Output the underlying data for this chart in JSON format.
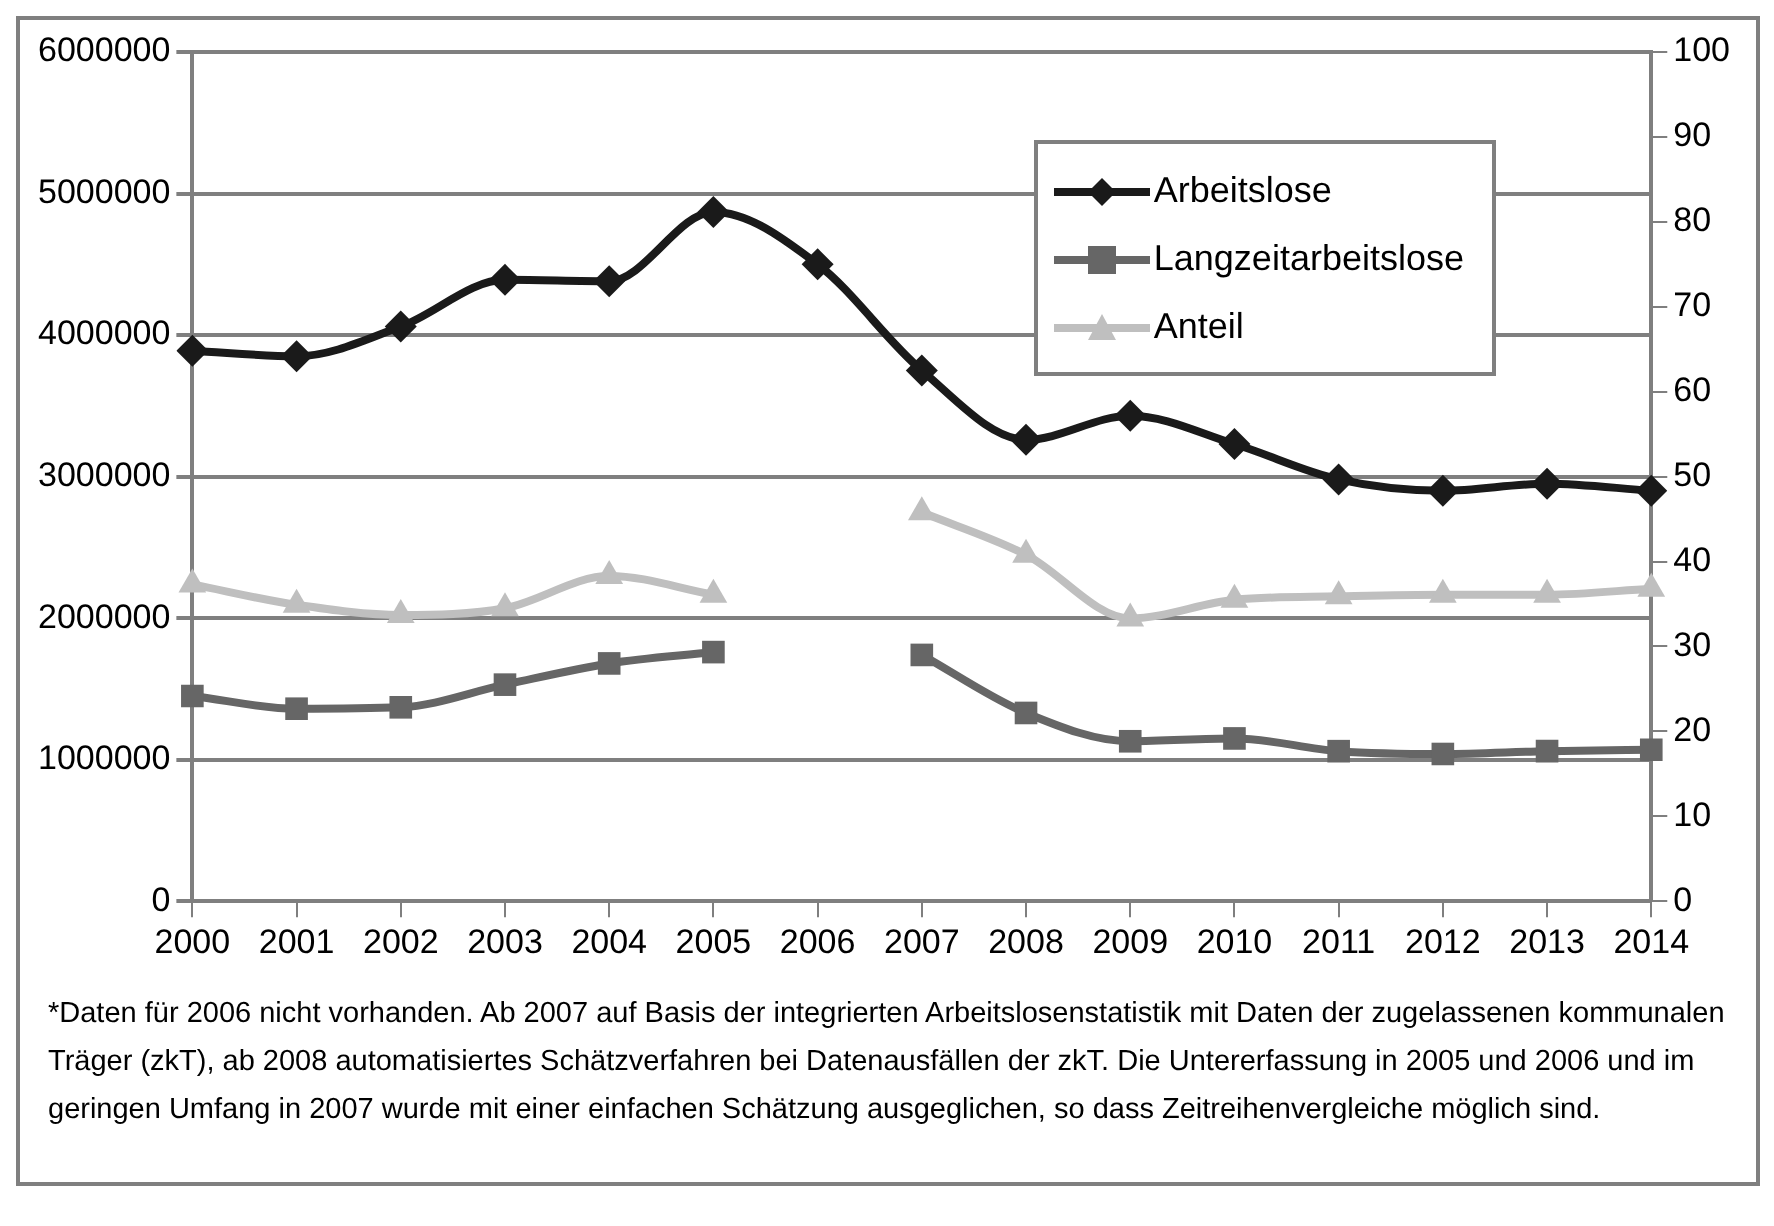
{
  "chart_data": {
    "type": "line",
    "categories": [
      "2000",
      "2001",
      "2002",
      "2003",
      "2004",
      "2005",
      "2006",
      "2007",
      "2008",
      "2009",
      "2010",
      "2011",
      "2012",
      "2013",
      "2014"
    ],
    "series": [
      {
        "name": "Arbeitslose",
        "color": "#1a1a1a",
        "marker": "diamond",
        "values": [
          3890000,
          3850000,
          4060000,
          4390000,
          4380000,
          4870000,
          4500000,
          3750000,
          3260000,
          3430000,
          3230000,
          2980000,
          2900000,
          2950000,
          2900000
        ]
      },
      {
        "name": "Langzeitarbeitslose",
        "color": "#666666",
        "marker": "square",
        "values": [
          1450000,
          1360000,
          1370000,
          1530000,
          1680000,
          1760000,
          null,
          1740000,
          1330000,
          1130000,
          1150000,
          1060000,
          1040000,
          1060000,
          1070000
        ]
      },
      {
        "name": "Anteil",
        "color": "#bfbfbf",
        "marker": "triangle",
        "axis": "y2",
        "values": [
          37.3,
          34.9,
          33.7,
          34.5,
          38.3,
          36.1,
          null,
          45.8,
          40.8,
          33.3,
          35.5,
          35.9,
          36.1,
          36.1,
          36.8
        ]
      }
    ],
    "ylim": [
      0,
      6000000
    ],
    "yticks": [
      0,
      1000000,
      2000000,
      3000000,
      4000000,
      5000000,
      6000000
    ],
    "y2lim": [
      0,
      100
    ],
    "y2ticks": [
      0,
      10,
      20,
      30,
      40,
      50,
      60,
      70,
      80,
      90,
      100
    ],
    "grid": "y",
    "legend": "top right",
    "line_style": "solid",
    "annotations": [
      "*Daten für 2006 nicht vorhanden. Ab 2007 auf Basis der integrierten Arbeitslosenstatistik mit Daten der zugelassenen kommunalen Träger (zkT), ab 2008 automatisiertes Schätzverfahren bei Datenausfällen der zkT. Die Untererfassung in 2005 und 2006 und im geringen Umfang in 2007 wurde mit einer einfachen Schätzung ausgeglichen, so dass Zeitreihenvergleiche möglich sind."
    ]
  }
}
